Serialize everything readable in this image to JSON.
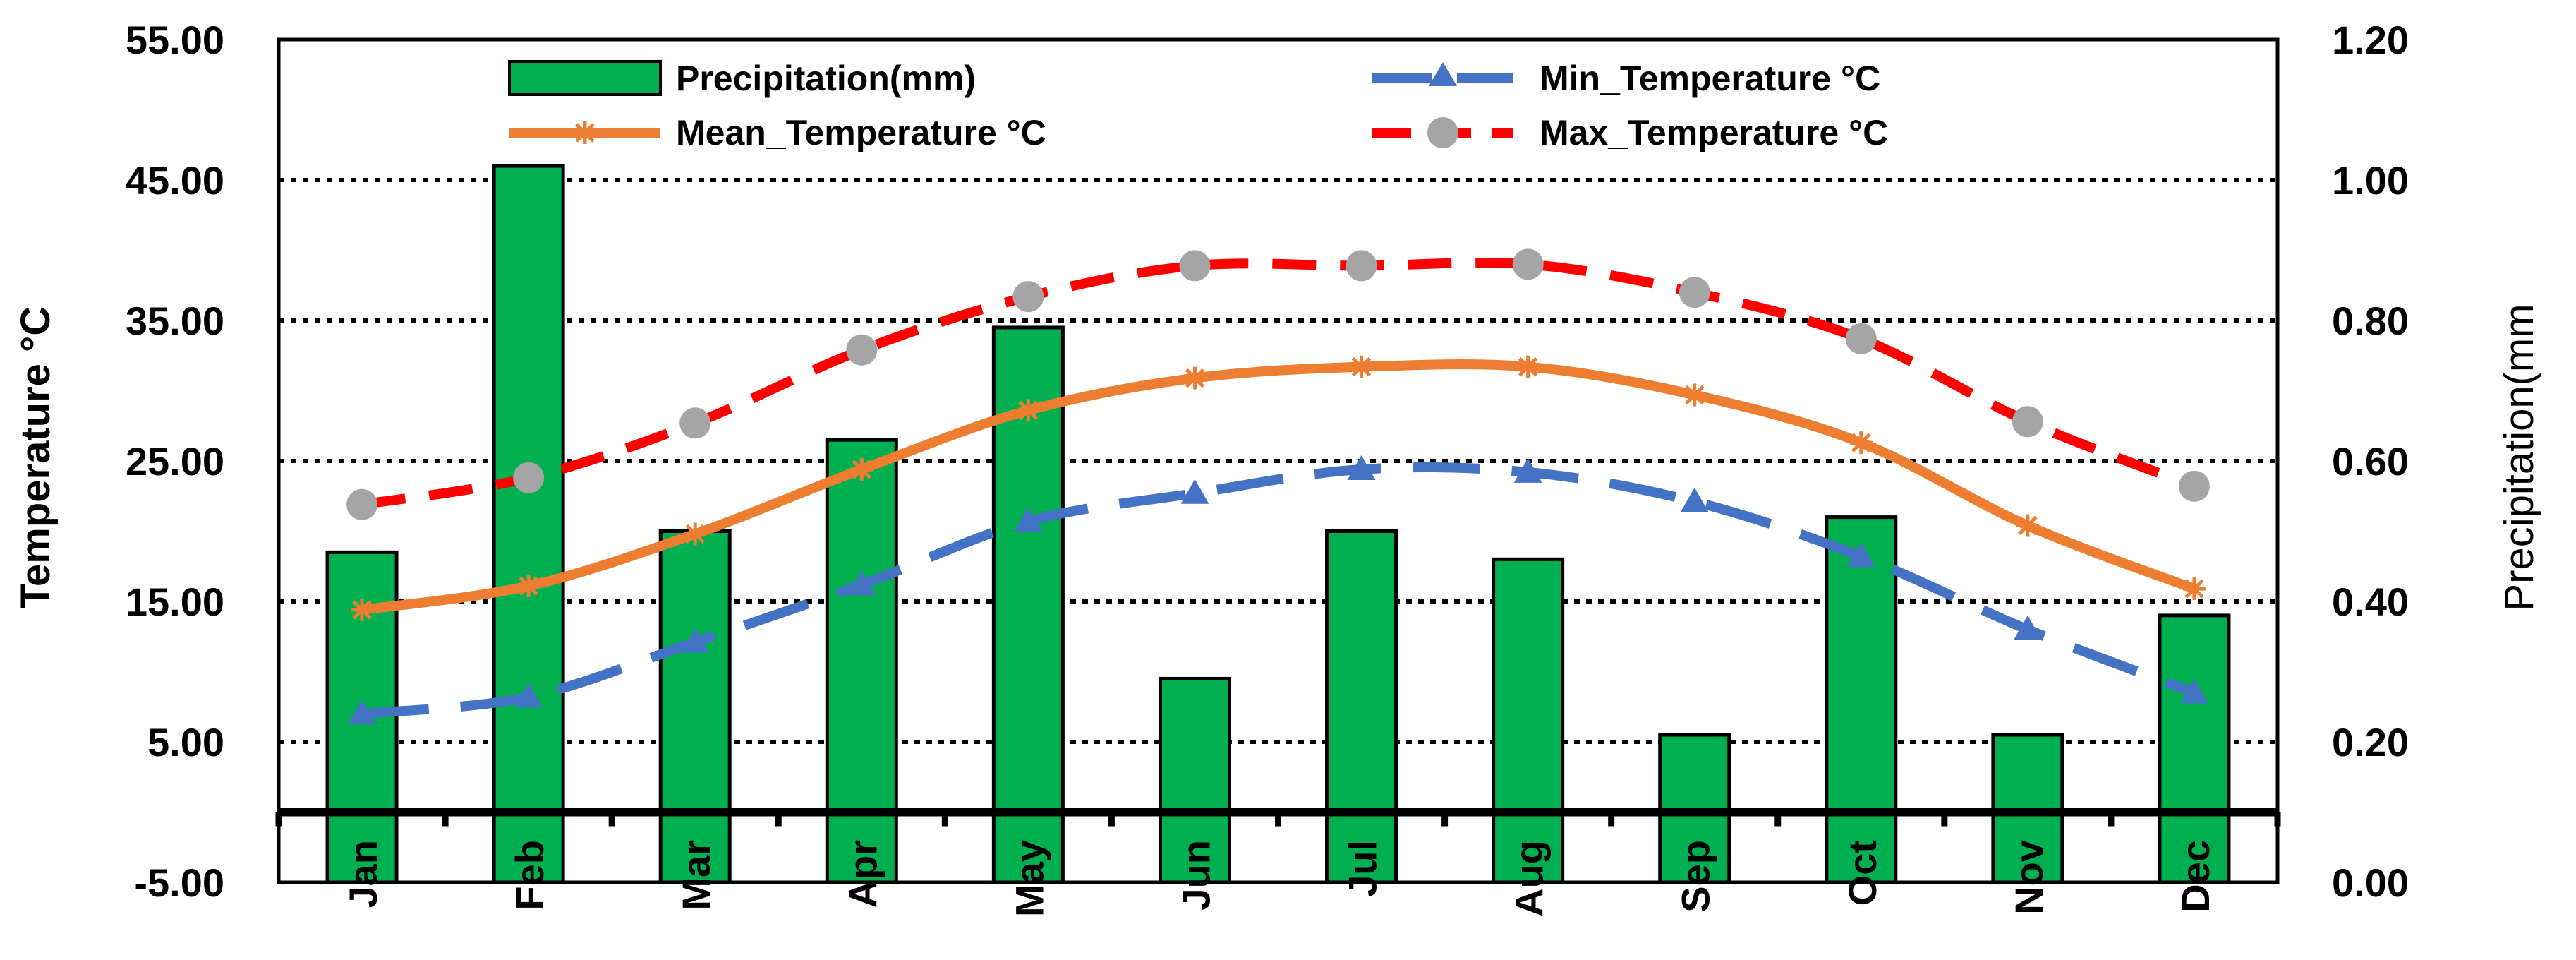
{
  "chart_data": {
    "type": "bar+line",
    "categories": [
      "Jan",
      "Feb",
      "Mar",
      "Apr",
      "May",
      "Jun",
      "Jul",
      "Aug",
      "Sep",
      "Oct",
      "Nov",
      "Dec"
    ],
    "y_left": {
      "label": "Temperature °C",
      "range": [
        -5,
        55
      ],
      "ticks": [
        "55.00",
        "45.00",
        "35.00",
        "25.00",
        "15.00",
        "5.00",
        "-5.00"
      ],
      "tick_values": [
        55,
        45,
        35,
        25,
        15,
        5,
        -5
      ]
    },
    "y_right": {
      "label": "Precipitation(mm",
      "range": [
        0,
        1.2
      ],
      "ticks": [
        "1.20",
        "1.00",
        "0.80",
        "0.60",
        "0.40",
        "0.20",
        "0.00"
      ],
      "tick_values": [
        1.2,
        1.0,
        0.8,
        0.6,
        0.4,
        0.2,
        0.0
      ]
    },
    "gridlines": [
      45,
      35,
      25,
      15,
      5
    ],
    "zero_line": 0,
    "series": [
      {
        "name": "Precipitation(mm)",
        "kind": "bar",
        "axis": "right",
        "color": "#00b050",
        "values": [
          0.47,
          1.02,
          0.5,
          0.63,
          0.79,
          0.29,
          0.5,
          0.46,
          0.21,
          0.52,
          0.21,
          0.38
        ]
      },
      {
        "name": "Min_Temperature °C",
        "kind": "line",
        "axis": "left",
        "color": "#4472c4",
        "dash": "long",
        "marker": "triangle",
        "values": [
          7.0,
          8.2,
          12.1,
          16.2,
          20.7,
          22.7,
          24.4,
          24.2,
          22.1,
          18.2,
          13.0,
          8.5
        ]
      },
      {
        "name": "Mean_Temperature °C",
        "kind": "line",
        "axis": "left",
        "color": "#ed7d31",
        "dash": "solid",
        "marker": "star",
        "values": [
          14.4,
          16.1,
          19.8,
          24.4,
          28.6,
          30.9,
          31.7,
          31.7,
          29.7,
          26.3,
          20.4,
          15.9
        ]
      },
      {
        "name": "Max_Temperature °C",
        "kind": "line",
        "axis": "left",
        "color": "#ff0000",
        "dash": "dash",
        "marker": "circle",
        "marker_color": "#a5a5a5",
        "values": [
          21.9,
          23.8,
          27.7,
          32.9,
          36.7,
          38.9,
          38.9,
          39.0,
          37.0,
          33.7,
          27.8,
          23.2
        ]
      }
    ],
    "legend": [
      "Precipitation(mm)",
      "Min_Temperature °C",
      "Mean_Temperature °C",
      "Max_Temperature °C"
    ]
  }
}
